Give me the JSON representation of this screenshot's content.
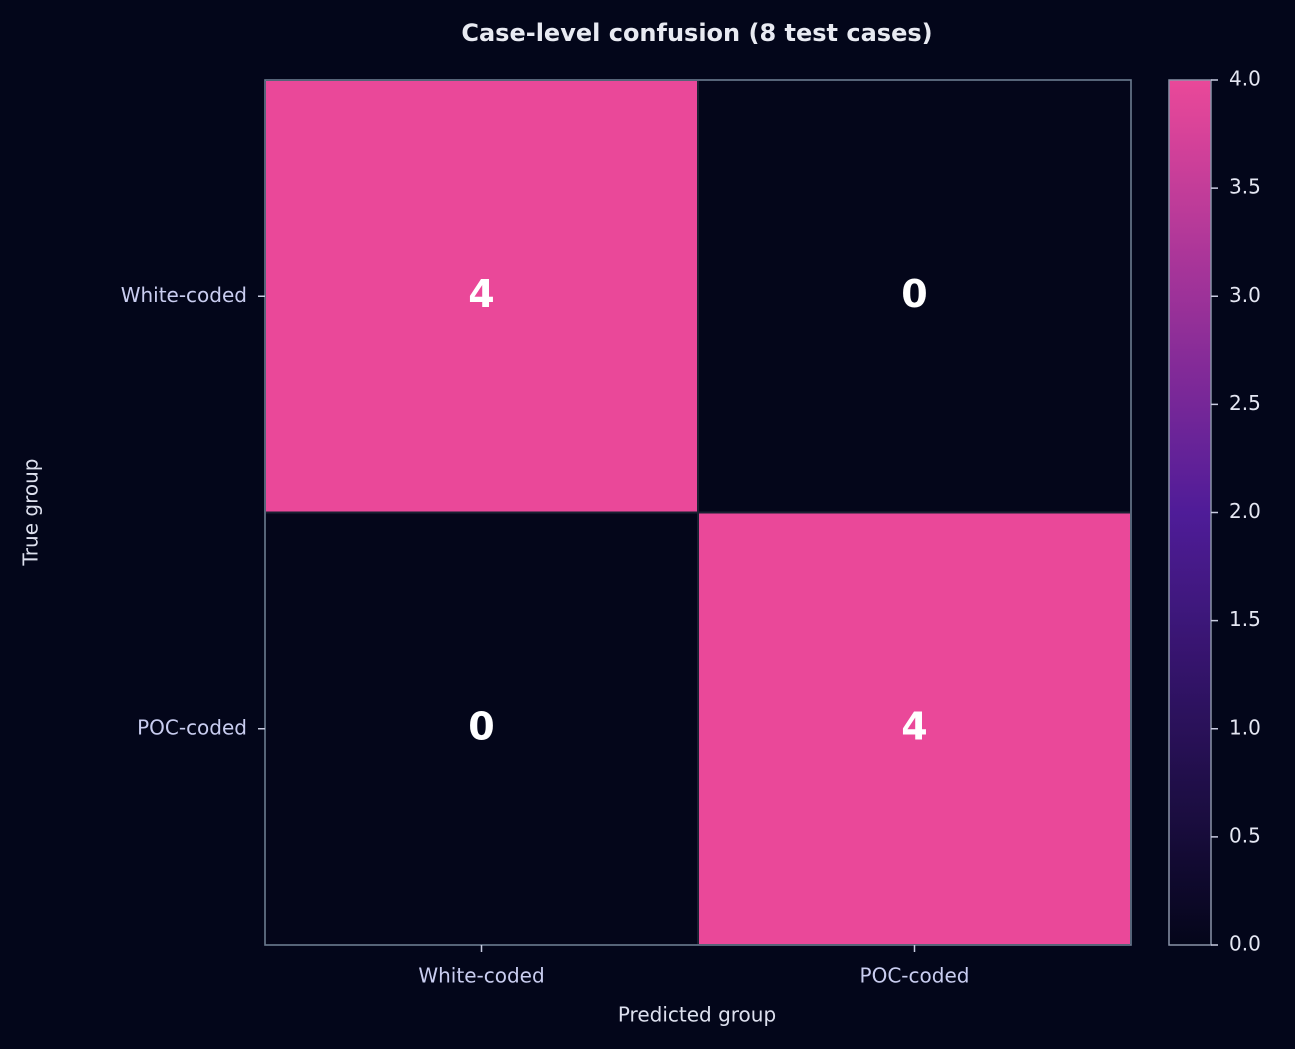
{
  "chart_data": {
    "type": "heatmap",
    "title": "Case-level confusion (8 test cases)",
    "x_label": "Predicted group",
    "y_label": "True group",
    "x_categories": [
      "White-coded",
      "POC-coded"
    ],
    "y_categories": [
      "White-coded",
      "POC-coded"
    ],
    "values": [
      [
        4,
        0
      ],
      [
        0,
        4
      ]
    ],
    "colors": [
      "#04061a",
      "#4f1c98",
      "#ea4899"
    ],
    "clim": [
      0,
      4
    ],
    "cticks": [
      {
        "value": 0,
        "label": "0.0"
      },
      0.5,
      {
        "value": 1,
        "label": "1.0"
      },
      1.5,
      {
        "value": 2,
        "label": "2.0"
      },
      2.5,
      {
        "value": 3,
        "label": "3.0"
      },
      3.5,
      {
        "value": 4,
        "label": "4.0"
      }
    ]
  }
}
